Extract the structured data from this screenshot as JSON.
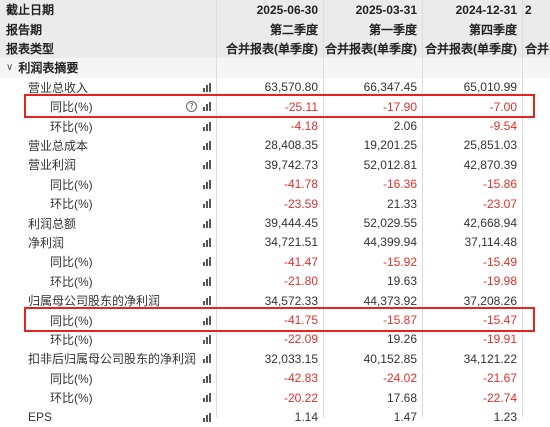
{
  "header": {
    "row1": {
      "label": "截止日期",
      "c1": "2025-06-30",
      "c2": "2025-03-31",
      "c3": "2024-12-31",
      "c4": "2"
    },
    "row2": {
      "label": "报告期",
      "c1": "第二季度",
      "c2": "第一季度",
      "c3": "第四季度",
      "c4": ""
    },
    "row3": {
      "label": "报表类型",
      "c1": "合并报表(单季度)",
      "c2": "合并报表(单季度)",
      "c3": "合并报表(单季度)",
      "c4": "合并"
    }
  },
  "section": {
    "label": "利润表摘要",
    "chevron": "chevron-down-icon"
  },
  "rows": [
    {
      "label": "营业总收入",
      "c1": "63,570.80",
      "c2": "66,347.45",
      "c3": "65,010.99"
    },
    {
      "label": "同比(%)",
      "c1": "-25.11",
      "c2": "-17.90",
      "c3": "-7.00",
      "help": "?"
    },
    {
      "label": "环比(%)",
      "c1": "-4.18",
      "c2": "2.06",
      "c3": "-9.54"
    },
    {
      "label": "营业总成本",
      "c1": "28,408.35",
      "c2": "19,201.25",
      "c3": "25,851.03"
    },
    {
      "label": "营业利润",
      "c1": "39,742.73",
      "c2": "52,012.81",
      "c3": "42,870.39"
    },
    {
      "label": "同比(%)",
      "c1": "-41.78",
      "c2": "-16.36",
      "c3": "-15.86"
    },
    {
      "label": "环比(%)",
      "c1": "-23.59",
      "c2": "21.33",
      "c3": "-23.07"
    },
    {
      "label": "利润总额",
      "c1": "39,444.45",
      "c2": "52,029.55",
      "c3": "42,668.94"
    },
    {
      "label": "净利润",
      "c1": "34,721.51",
      "c2": "44,399.94",
      "c3": "37,114.48"
    },
    {
      "label": "同比(%)",
      "c1": "-41.47",
      "c2": "-15.92",
      "c3": "-15.49"
    },
    {
      "label": "环比(%)",
      "c1": "-21.80",
      "c2": "19.63",
      "c3": "-19.98"
    },
    {
      "label": "归属母公司股东的净利润",
      "c1": "34,572.33",
      "c2": "44,373.92",
      "c3": "37,208.26"
    },
    {
      "label": "同比(%)",
      "c1": "-41.75",
      "c2": "-15.87",
      "c3": "-15.47"
    },
    {
      "label": "环比(%)",
      "c1": "-22.09",
      "c2": "19.26",
      "c3": "-19.91"
    },
    {
      "label": "扣非后归属母公司股东的净利润",
      "c1": "32,033.15",
      "c2": "40,152.85",
      "c3": "34,121.22"
    },
    {
      "label": "同比(%)",
      "c1": "-42.83",
      "c2": "-24.02",
      "c3": "-21.67"
    },
    {
      "label": "环比(%)",
      "c1": "-20.22",
      "c2": "17.68",
      "c3": "-22.74"
    },
    {
      "label": "EPS",
      "c1": "1.14",
      "c2": "1.47",
      "c3": "1.23"
    }
  ],
  "icons": {
    "trend": "bar-chart-icon",
    "help": "question-circle-icon"
  },
  "colors": {
    "negative": "#e0302c",
    "highlight": "#e8231e",
    "header_bg": "#ebebeb"
  }
}
